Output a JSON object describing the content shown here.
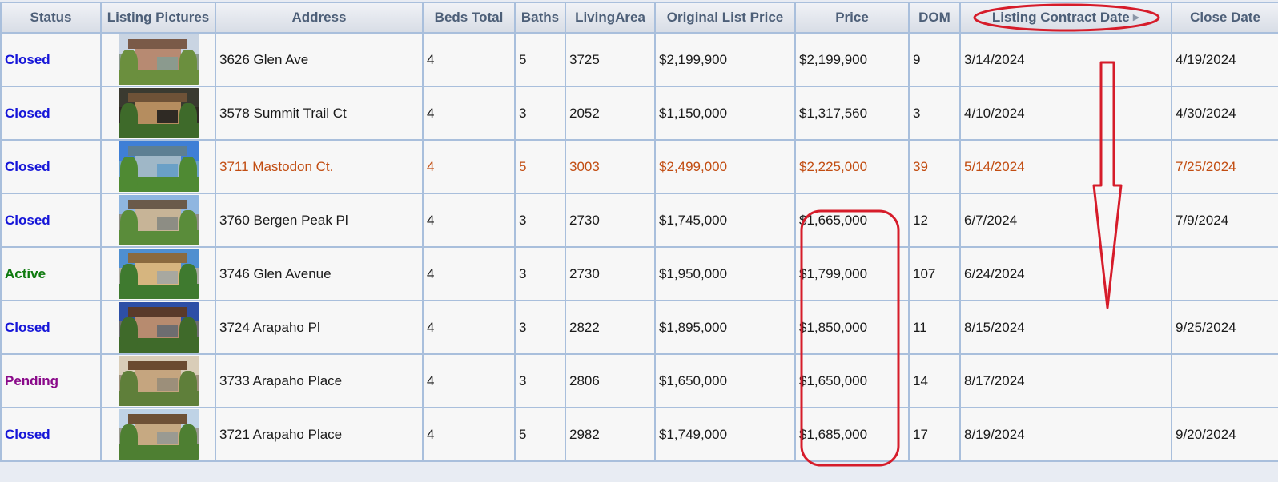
{
  "columns": [
    {
      "label": "Status"
    },
    {
      "label": "Listing Pictures"
    },
    {
      "label": "Address"
    },
    {
      "label": "Beds Total"
    },
    {
      "label": "Baths"
    },
    {
      "label": "LivingArea"
    },
    {
      "label": "Original List Price"
    },
    {
      "label": "Price"
    },
    {
      "label": "DOM"
    },
    {
      "label": "Listing Contract Date",
      "sort_icon": "sort-triangle-icon"
    },
    {
      "label": "Close Date"
    }
  ],
  "rows": [
    {
      "status": "Closed",
      "status_type": "closed",
      "address": "3626 Glen Ave",
      "beds": "4",
      "baths": "5",
      "living_area": "3725",
      "original_list_price": "$2,199,900",
      "price": "$2,199,900",
      "dom": "9",
      "contract_date": "3/14/2024",
      "close_date": "4/19/2024",
      "highlight": false,
      "photo_palette": [
        "#c9d4e2",
        "#b78a72",
        "#7a5a48",
        "#8b9a8e",
        "#6b8f3e"
      ]
    },
    {
      "status": "Closed",
      "status_type": "closed",
      "address": "3578 Summit Trail Ct",
      "beds": "4",
      "baths": "3",
      "living_area": "2052",
      "original_list_price": "$1,150,000",
      "price": "$1,317,560",
      "dom": "3",
      "contract_date": "4/10/2024",
      "close_date": "4/30/2024",
      "highlight": false,
      "photo_palette": [
        "#3a3a30",
        "#b58d5f",
        "#6e5237",
        "#2f2a24",
        "#3e6a2a"
      ]
    },
    {
      "status": "Closed",
      "status_type": "closed",
      "address": "3711 Mastodon Ct.",
      "beds": "4",
      "baths": "5",
      "living_area": "3003",
      "original_list_price": "$2,499,000",
      "price": "$2,225,000",
      "dom": "39",
      "contract_date": "5/14/2024",
      "close_date": "7/25/2024",
      "highlight": true,
      "photo_palette": [
        "#3f7fd6",
        "#9fb7c7",
        "#5d7f93",
        "#6aa0c7",
        "#4f8a33"
      ]
    },
    {
      "status": "Closed",
      "status_type": "closed",
      "address": "3760 Bergen Peak Pl",
      "beds": "4",
      "baths": "3",
      "living_area": "2730",
      "original_list_price": "$1,745,000",
      "price": "$1,665,000",
      "dom": "12",
      "contract_date": "6/7/2024",
      "close_date": "7/9/2024",
      "highlight": false,
      "photo_palette": [
        "#8fb6e0",
        "#c7b497",
        "#6a5a4a",
        "#8d8d84",
        "#5a8c3a"
      ]
    },
    {
      "status": "Active",
      "status_type": "active",
      "address": "3746 Glen Avenue",
      "beds": "4",
      "baths": "3",
      "living_area": "2730",
      "original_list_price": "$1,950,000",
      "price": "$1,799,000",
      "dom": "107",
      "contract_date": "6/24/2024",
      "close_date": "",
      "highlight": false,
      "photo_palette": [
        "#4f8fd0",
        "#d6b57f",
        "#8a6a3f",
        "#a8a8a0",
        "#3f7a2f"
      ]
    },
    {
      "status": "Closed",
      "status_type": "closed",
      "address": "3724 Arapaho Pl",
      "beds": "4",
      "baths": "3",
      "living_area": "2822",
      "original_list_price": "$1,895,000",
      "price": "$1,850,000",
      "dom": "11",
      "contract_date": "8/15/2024",
      "close_date": "9/25/2024",
      "highlight": false,
      "photo_palette": [
        "#2d4fa6",
        "#b78b6f",
        "#5a3a2a",
        "#6d6d70",
        "#3f6a2a"
      ]
    },
    {
      "status": "Pending",
      "status_type": "pending",
      "address": "3733 Arapaho Place",
      "beds": "4",
      "baths": "3",
      "living_area": "2806",
      "original_list_price": "$1,650,000",
      "price": "$1,650,000",
      "dom": "14",
      "contract_date": "8/17/2024",
      "close_date": "",
      "highlight": false,
      "photo_palette": [
        "#d9cdb8",
        "#c5a57f",
        "#6b4a30",
        "#9c8f7a",
        "#5f7f3a"
      ]
    },
    {
      "status": "Closed",
      "status_type": "closed",
      "address": "3721 Arapaho Place",
      "beds": "4",
      "baths": "5",
      "living_area": "2982",
      "original_list_price": "$1,749,000",
      "price": "$1,685,000",
      "dom": "17",
      "contract_date": "8/19/2024",
      "close_date": "9/20/2024",
      "highlight": false,
      "photo_palette": [
        "#bfd3e6",
        "#c6a982",
        "#6e5136",
        "#9a9a92",
        "#4e7f32"
      ]
    }
  ],
  "colors": {
    "header_text": "#4d5f78",
    "grid_border": "#a9bfdc",
    "status_closed": "#1616d8",
    "status_active": "#0e7a0e",
    "status_pending": "#8a0a8a",
    "highlight_row_text": "#c24d12",
    "annotation_red": "#d61c2a"
  },
  "annotations": [
    {
      "type": "ellipse",
      "target": "Listing Contract Date header"
    },
    {
      "type": "down-arrow",
      "target": "Listing Contract Date column"
    },
    {
      "type": "rounded-rect",
      "target": "Price column rows 4-8"
    }
  ]
}
